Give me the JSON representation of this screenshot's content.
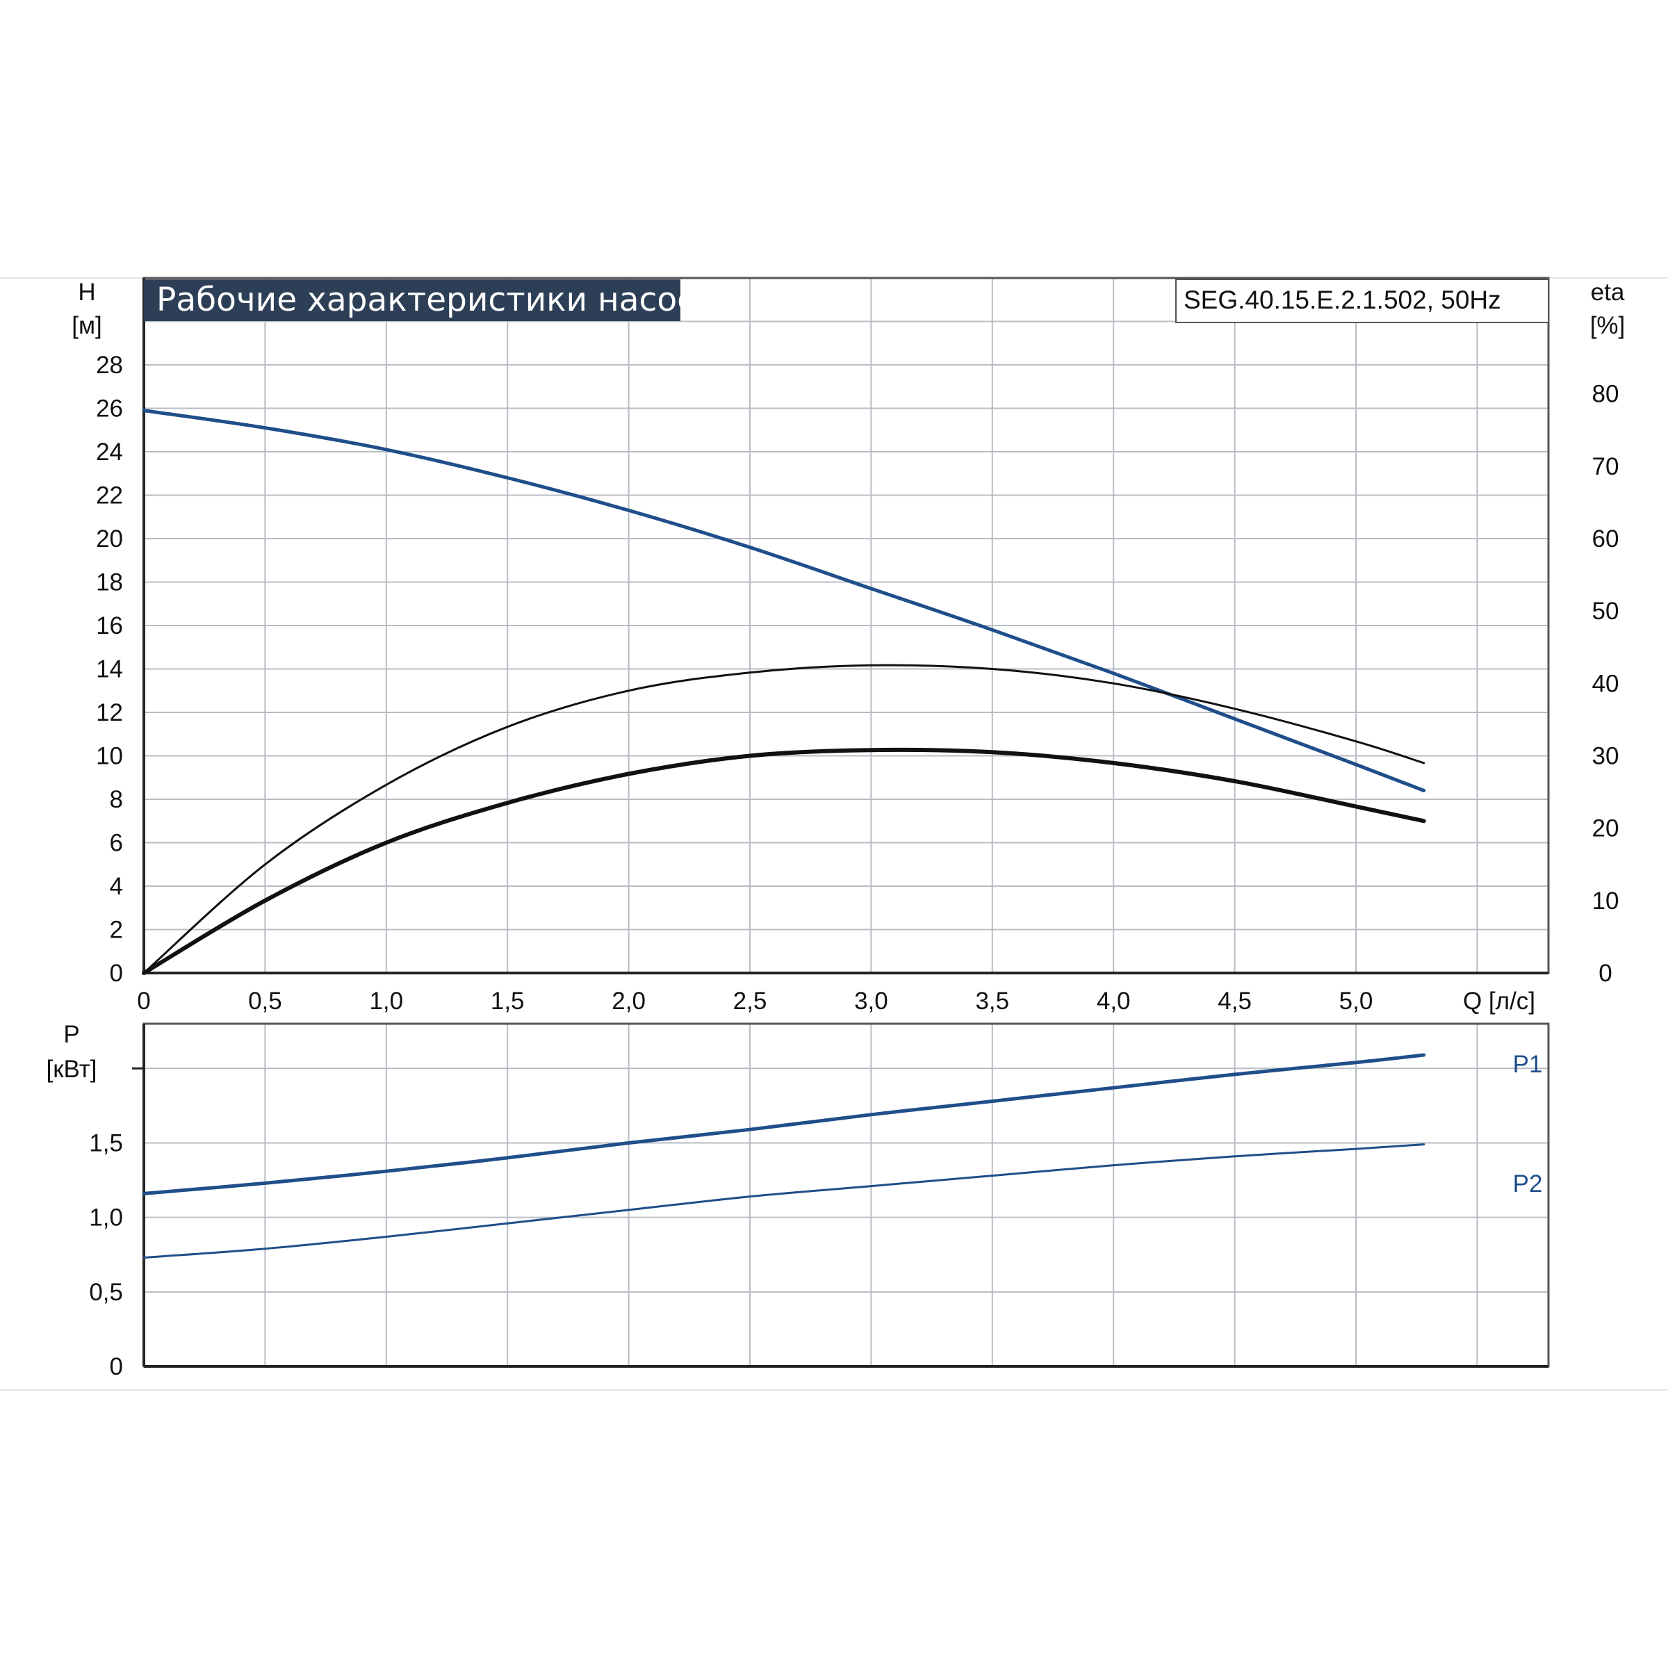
{
  "colors": {
    "blue": "#1f4e8a",
    "black": "#111111",
    "grid": "#b9bcc4",
    "title_bg": "#2d3f57"
  },
  "chart_data": [
    {
      "type": "line",
      "title": "Рабочие характеристики насоса",
      "subtitle": "SEG.40.15.E.2.1.502, 50Hz",
      "xlabel": "Q [л/с]",
      "ylabel": "H",
      "ylabel_unit": "[м]",
      "y2label": "eta",
      "y2label_unit": "[%]",
      "xlim": [
        0,
        5.8
      ],
      "ylim": [
        0,
        32
      ],
      "y2lim": [
        0,
        96
      ],
      "grid": true,
      "x_ticks": [
        "0",
        "0,5",
        "1,0",
        "1,5",
        "2,0",
        "2,5",
        "3,0",
        "3,5",
        "4,0",
        "4,5",
        "5,0"
      ],
      "y_ticks": [
        "0",
        "2",
        "4",
        "6",
        "8",
        "10",
        "12",
        "14",
        "16",
        "18",
        "20",
        "22",
        "24",
        "26",
        "28"
      ],
      "y2_ticks": [
        "0",
        "10",
        "20",
        "30",
        "40",
        "50",
        "60",
        "70",
        "80"
      ],
      "series": [
        {
          "key": "H",
          "axis": "left",
          "color": "blue",
          "x": [
            0,
            0.5,
            1.0,
            1.5,
            2.0,
            2.5,
            3.0,
            3.5,
            4.0,
            4.5,
            5.0,
            5.28
          ],
          "y": [
            25.9,
            25.1,
            24.1,
            22.8,
            21.3,
            19.6,
            17.7,
            15.8,
            13.8,
            11.7,
            9.6,
            8.4
          ]
        },
        {
          "key": "eta_thin",
          "axis": "right",
          "color": "black",
          "x": [
            0,
            0.5,
            1.0,
            1.5,
            2.0,
            2.5,
            3.0,
            3.5,
            4.0,
            4.5,
            5.0,
            5.28
          ],
          "y": [
            0,
            15,
            26,
            34,
            39,
            41.5,
            42.5,
            42,
            40,
            36.5,
            32,
            29
          ]
        },
        {
          "key": "eta_thick",
          "axis": "right",
          "color": "black",
          "x": [
            0,
            0.5,
            1.0,
            1.5,
            2.0,
            2.5,
            3.0,
            3.5,
            4.0,
            4.5,
            5.0,
            5.28
          ],
          "y": [
            0,
            10,
            18,
            23.5,
            27.5,
            30,
            30.8,
            30.5,
            29,
            26.5,
            23,
            21
          ]
        }
      ]
    },
    {
      "type": "line",
      "ylabel": "P",
      "ylabel_unit": "[кВт]",
      "xlim": [
        0,
        5.8
      ],
      "ylim": [
        0,
        2.3
      ],
      "grid": true,
      "y_ticks": [
        "0",
        "0,5",
        "1,0",
        "1,5"
      ],
      "series": [
        {
          "name": "P1",
          "color": "blue",
          "x": [
            0,
            0.5,
            1.0,
            1.5,
            2.0,
            2.5,
            3.0,
            3.5,
            4.0,
            4.5,
            5.0,
            5.28
          ],
          "y": [
            1.16,
            1.23,
            1.31,
            1.4,
            1.5,
            1.59,
            1.69,
            1.78,
            1.87,
            1.96,
            2.04,
            2.09
          ]
        },
        {
          "name": "P2",
          "color": "blue",
          "x": [
            0,
            0.5,
            1.0,
            1.5,
            2.0,
            2.5,
            3.0,
            3.5,
            4.0,
            4.5,
            5.0,
            5.28
          ],
          "y": [
            0.73,
            0.79,
            0.87,
            0.96,
            1.05,
            1.14,
            1.21,
            1.28,
            1.35,
            1.41,
            1.46,
            1.49
          ]
        }
      ]
    }
  ]
}
